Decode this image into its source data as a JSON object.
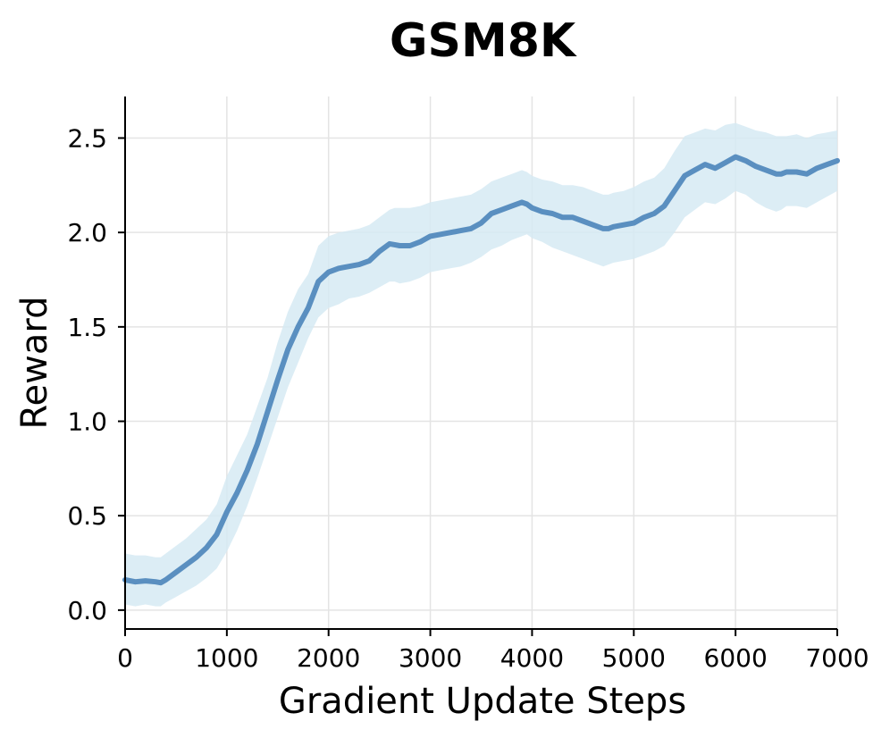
{
  "chart_data": {
    "type": "line",
    "title": "GSM8K",
    "xlabel": "Gradient Update Steps",
    "ylabel": "Reward",
    "xlim": [
      0,
      7000
    ],
    "ylim": [
      -0.1,
      2.72
    ],
    "xticks": [
      0,
      1000,
      2000,
      3000,
      4000,
      5000,
      6000,
      7000
    ],
    "xtick_labels": [
      "0",
      "1000",
      "2000",
      "3000",
      "4000",
      "5000",
      "6000",
      "7000"
    ],
    "yticks": [
      0.0,
      0.5,
      1.0,
      1.5,
      2.0,
      2.5
    ],
    "ytick_labels": [
      "0.0",
      "0.5",
      "1.0",
      "1.5",
      "2.0",
      "2.5"
    ],
    "grid": true,
    "colors": {
      "line": "#5a8fc0",
      "band": "#d6eaf3",
      "grid": "#e4e4e4",
      "axis": "#000000"
    },
    "series": [
      {
        "x": [
          0,
          100,
          200,
          300,
          350,
          400,
          500,
          600,
          700,
          800,
          900,
          1000,
          1100,
          1200,
          1300,
          1400,
          1500,
          1600,
          1700,
          1800,
          1900,
          2000,
          2100,
          2200,
          2300,
          2400,
          2500,
          2600,
          2650,
          2700,
          2800,
          2900,
          3000,
          3100,
          3200,
          3300,
          3400,
          3500,
          3600,
          3700,
          3800,
          3900,
          3950,
          4000,
          4100,
          4200,
          4300,
          4400,
          4500,
          4600,
          4700,
          4750,
          4800,
          4900,
          5000,
          5100,
          5200,
          5300,
          5400,
          5500,
          5600,
          5700,
          5800,
          5900,
          6000,
          6100,
          6200,
          6300,
          6400,
          6450,
          6500,
          6600,
          6700,
          6800,
          6900,
          7000
        ],
        "y": [
          0.16,
          0.15,
          0.155,
          0.15,
          0.145,
          0.16,
          0.2,
          0.24,
          0.28,
          0.33,
          0.4,
          0.52,
          0.62,
          0.74,
          0.88,
          1.05,
          1.22,
          1.38,
          1.5,
          1.6,
          1.74,
          1.79,
          1.81,
          1.82,
          1.83,
          1.85,
          1.9,
          1.94,
          1.935,
          1.93,
          1.93,
          1.95,
          1.98,
          1.99,
          2.0,
          2.01,
          2.02,
          2.05,
          2.1,
          2.12,
          2.14,
          2.16,
          2.15,
          2.13,
          2.11,
          2.1,
          2.08,
          2.08,
          2.06,
          2.04,
          2.02,
          2.02,
          2.03,
          2.04,
          2.05,
          2.08,
          2.1,
          2.14,
          2.22,
          2.3,
          2.33,
          2.36,
          2.34,
          2.37,
          2.4,
          2.38,
          2.35,
          2.33,
          2.31,
          2.31,
          2.32,
          2.32,
          2.31,
          2.34,
          2.36,
          2.38
        ],
        "lower": [
          0.03,
          0.02,
          0.03,
          0.02,
          0.02,
          0.04,
          0.07,
          0.1,
          0.13,
          0.17,
          0.22,
          0.31,
          0.42,
          0.55,
          0.7,
          0.86,
          1.02,
          1.18,
          1.31,
          1.44,
          1.55,
          1.6,
          1.62,
          1.65,
          1.66,
          1.68,
          1.71,
          1.74,
          1.74,
          1.73,
          1.74,
          1.76,
          1.79,
          1.8,
          1.81,
          1.82,
          1.84,
          1.87,
          1.91,
          1.93,
          1.96,
          1.98,
          1.99,
          1.97,
          1.95,
          1.92,
          1.9,
          1.88,
          1.86,
          1.84,
          1.82,
          1.83,
          1.84,
          1.85,
          1.86,
          1.88,
          1.9,
          1.93,
          2.0,
          2.08,
          2.12,
          2.16,
          2.15,
          2.18,
          2.22,
          2.2,
          2.16,
          2.13,
          2.11,
          2.12,
          2.14,
          2.14,
          2.13,
          2.16,
          2.19,
          2.22
        ],
        "upper": [
          0.3,
          0.29,
          0.29,
          0.28,
          0.28,
          0.3,
          0.34,
          0.38,
          0.43,
          0.48,
          0.56,
          0.71,
          0.82,
          0.93,
          1.08,
          1.23,
          1.42,
          1.58,
          1.7,
          1.78,
          1.93,
          1.98,
          2.0,
          2.01,
          2.02,
          2.04,
          2.08,
          2.12,
          2.13,
          2.13,
          2.13,
          2.14,
          2.16,
          2.17,
          2.18,
          2.19,
          2.2,
          2.23,
          2.27,
          2.29,
          2.31,
          2.33,
          2.32,
          2.3,
          2.28,
          2.27,
          2.25,
          2.25,
          2.24,
          2.22,
          2.2,
          2.2,
          2.21,
          2.22,
          2.24,
          2.27,
          2.29,
          2.34,
          2.43,
          2.51,
          2.53,
          2.55,
          2.54,
          2.57,
          2.58,
          2.56,
          2.54,
          2.53,
          2.51,
          2.51,
          2.51,
          2.52,
          2.5,
          2.52,
          2.53,
          2.54
        ]
      }
    ]
  }
}
